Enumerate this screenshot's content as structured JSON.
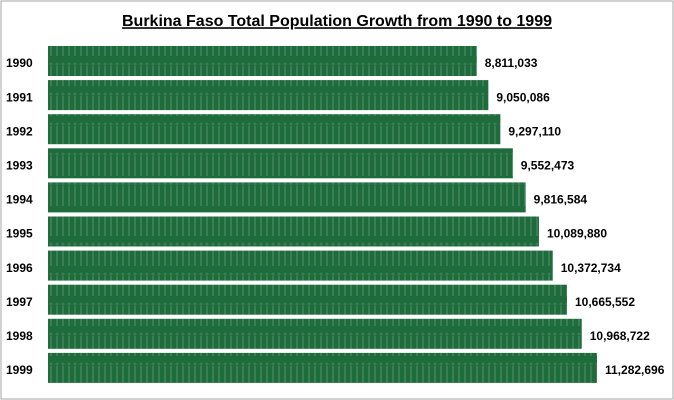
{
  "chart_data": {
    "type": "bar",
    "orientation": "horizontal",
    "title": "Burkina Faso Total Population Growth from 1990 to 1999",
    "categories": [
      "1990",
      "1991",
      "1992",
      "1993",
      "1994",
      "1995",
      "1996",
      "1997",
      "1998",
      "1999"
    ],
    "values": [
      8811033,
      9050086,
      9297110,
      9552473,
      9816584,
      10089880,
      10372734,
      10665552,
      10968722,
      11282696
    ],
    "value_labels": [
      "8,811,033",
      "9,050,086",
      "9,297,110",
      "9,552,473",
      "9,816,584",
      "10,089,880",
      "10,372,734",
      "10,665,552",
      "10,968,722",
      "11,282,696"
    ],
    "color": "#1e6b3c"
  }
}
